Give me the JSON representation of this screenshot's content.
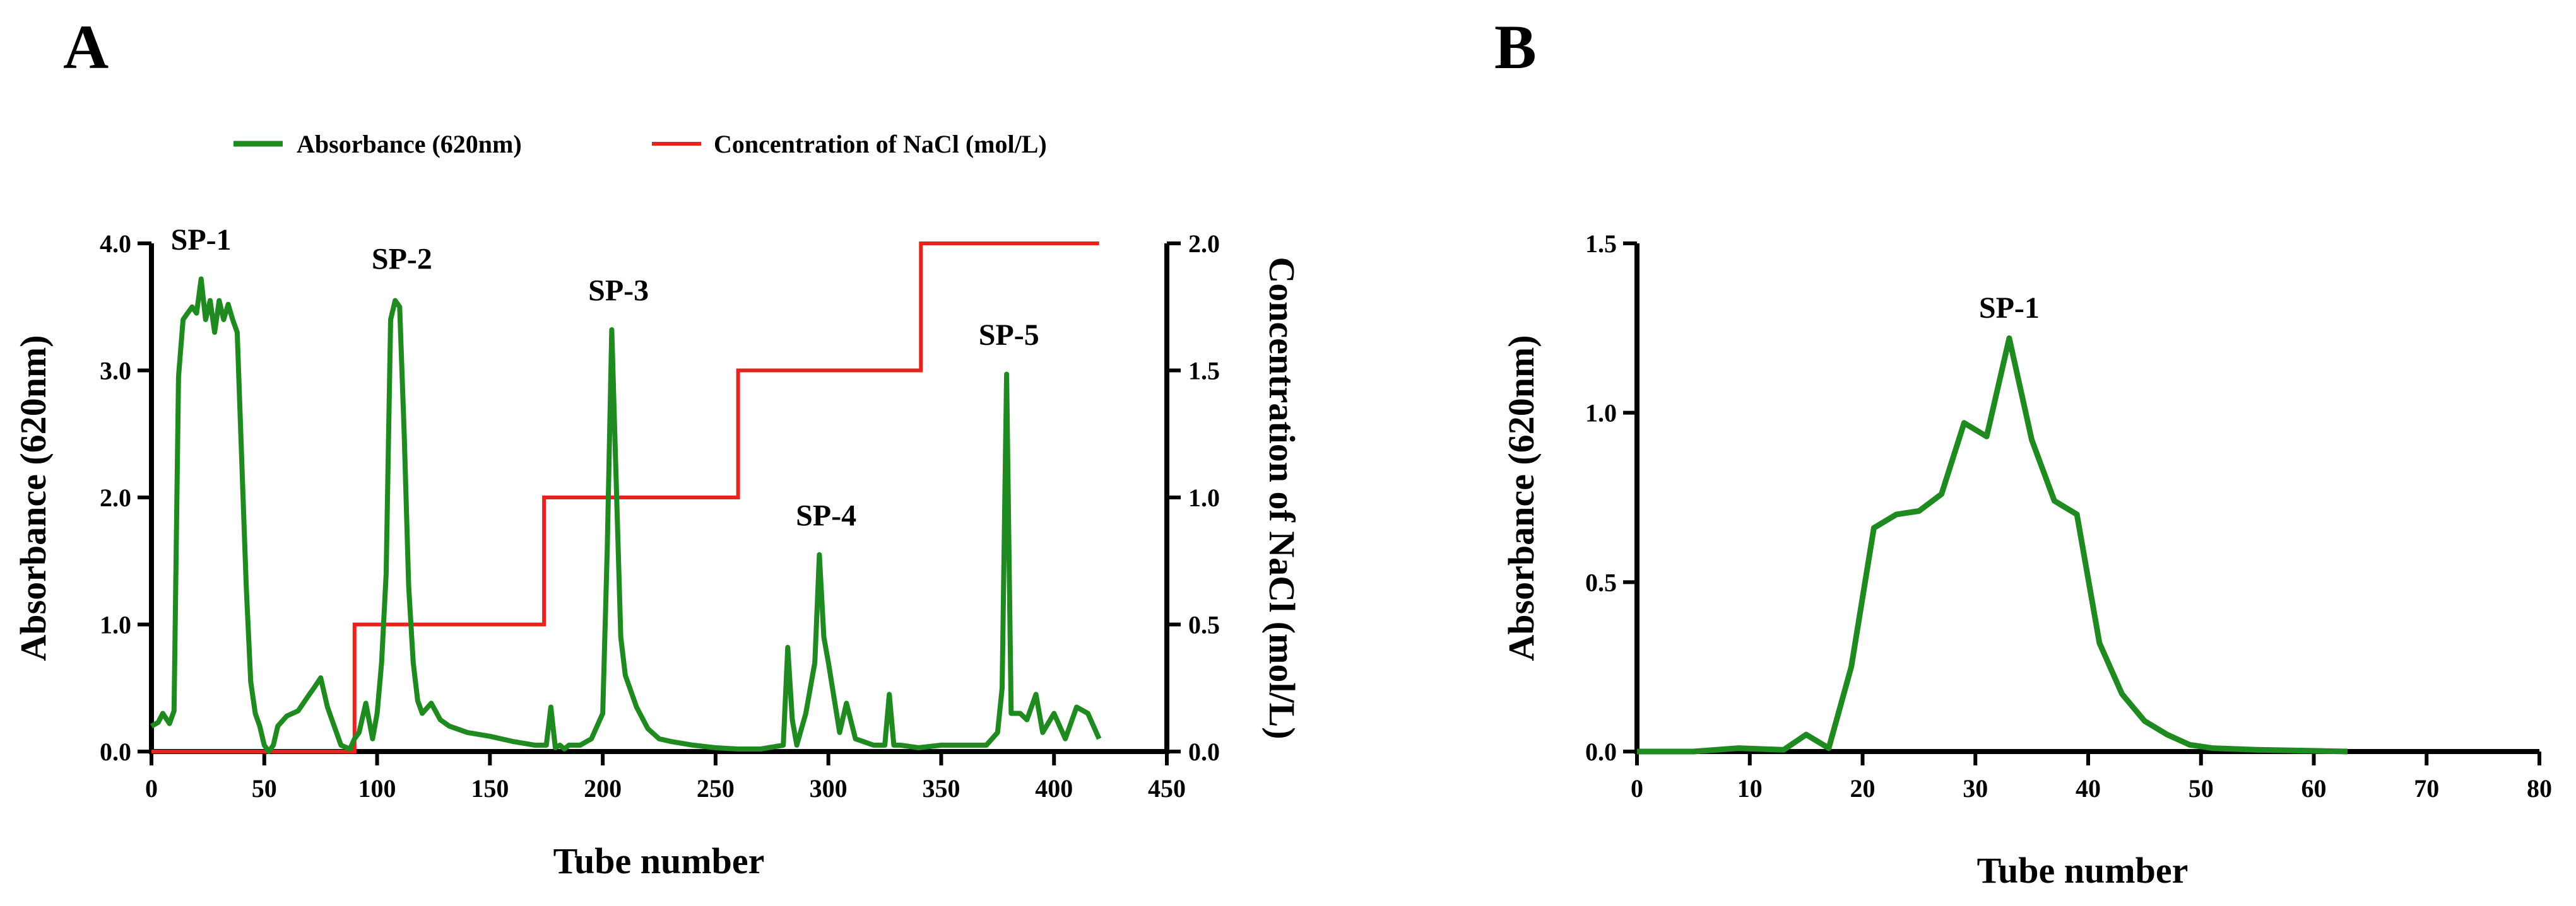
{
  "panels": {
    "a": {
      "label": "A"
    },
    "b": {
      "label": "B"
    }
  },
  "colors": {
    "absorbance": "#1f8a1f",
    "nacl": "#e8231d",
    "axis": "#000000"
  },
  "chart_data": [
    {
      "id": "A",
      "type": "line",
      "legend": {
        "position": "top",
        "entries": [
          "Absorbance (620nm)",
          "Concentration of NaCl (mol/L)"
        ]
      },
      "xlabel": "Tube number",
      "ylabel": "Absorbance (620nm)",
      "y2label": "Concentration of NaCl (mol/L)",
      "xlim": [
        0,
        450
      ],
      "ylim": [
        0,
        4.0
      ],
      "y2lim": [
        0,
        2.0
      ],
      "xticks": [
        "0",
        "50",
        "100",
        "150",
        "200",
        "250",
        "300",
        "350",
        "400",
        "450"
      ],
      "yticks": [
        "0.0",
        "1.0",
        "2.0",
        "3.0",
        "4.0"
      ],
      "y2ticks": [
        "0.0",
        "0.5",
        "1.0",
        "1.5",
        "2.0"
      ],
      "series": [
        {
          "name": "Absorbance (620nm)",
          "axis": "left",
          "x": [
            0,
            3,
            5,
            8,
            10,
            12,
            14,
            16,
            18,
            20,
            22,
            24,
            26,
            28,
            30,
            32,
            34,
            36,
            38,
            40,
            42,
            44,
            46,
            48,
            50,
            52,
            54,
            56,
            60,
            65,
            70,
            72,
            75,
            78,
            80,
            84,
            88,
            90,
            92,
            95,
            98,
            100,
            102,
            104,
            106,
            108,
            110,
            112,
            114,
            116,
            118,
            120,
            124,
            128,
            132,
            140,
            150,
            160,
            170,
            175,
            177,
            179,
            181,
            183,
            185,
            190,
            195,
            200,
            202,
            204,
            206,
            208,
            210,
            215,
            220,
            225,
            230,
            240,
            250,
            260,
            270,
            280,
            282,
            284,
            286,
            290,
            294,
            296,
            298,
            300,
            305,
            308,
            312,
            320,
            325,
            327,
            329,
            332,
            340,
            350,
            360,
            370,
            375,
            377,
            379,
            381,
            385,
            388,
            392,
            395,
            400,
            405,
            410,
            415,
            420
          ],
          "values": [
            0.2,
            0.23,
            0.3,
            0.22,
            0.32,
            2.95,
            3.4,
            3.45,
            3.5,
            3.45,
            3.72,
            3.4,
            3.55,
            3.3,
            3.55,
            3.4,
            3.52,
            3.4,
            3.3,
            2.3,
            1.3,
            0.55,
            0.3,
            0.2,
            0.05,
            0.0,
            0.05,
            0.2,
            0.28,
            0.32,
            0.45,
            0.5,
            0.58,
            0.35,
            0.25,
            0.05,
            0.02,
            0.1,
            0.15,
            0.38,
            0.1,
            0.3,
            0.7,
            1.4,
            3.4,
            3.55,
            3.5,
            2.5,
            1.3,
            0.7,
            0.4,
            0.3,
            0.38,
            0.25,
            0.2,
            0.15,
            0.12,
            0.08,
            0.05,
            0.05,
            0.35,
            0.03,
            0.05,
            0.02,
            0.05,
            0.05,
            0.1,
            0.3,
            1.6,
            3.32,
            2.1,
            0.9,
            0.6,
            0.35,
            0.18,
            0.1,
            0.08,
            0.05,
            0.03,
            0.02,
            0.02,
            0.05,
            0.82,
            0.25,
            0.05,
            0.3,
            0.7,
            1.55,
            0.9,
            0.7,
            0.15,
            0.38,
            0.1,
            0.05,
            0.05,
            0.45,
            0.05,
            0.05,
            0.03,
            0.05,
            0.05,
            0.05,
            0.15,
            0.5,
            2.97,
            0.3,
            0.3,
            0.25,
            0.45,
            0.15,
            0.3,
            0.1,
            0.35,
            0.3,
            0.1
          ],
          "color": "#1f8a1f"
        },
        {
          "name": "Concentration of NaCl (mol/L)",
          "axis": "right",
          "x": [
            0,
            90,
            90,
            174,
            174,
            260,
            260,
            341,
            341,
            420
          ],
          "values": [
            0,
            0,
            0.5,
            0.5,
            1.0,
            1.0,
            1.5,
            1.5,
            2.0,
            2.0
          ],
          "color": "#e8231d"
        }
      ],
      "annotations": [
        {
          "text": "SP-1",
          "x": 22,
          "y": 3.95
        },
        {
          "text": "SP-2",
          "x": 111,
          "y": 3.8
        },
        {
          "text": "SP-3",
          "x": 207,
          "y": 3.55
        },
        {
          "text": "SP-4",
          "x": 299,
          "y": 1.78
        },
        {
          "text": "SP-5",
          "x": 380,
          "y": 3.2
        }
      ]
    },
    {
      "id": "B",
      "type": "line",
      "xlabel": "Tube number",
      "ylabel": "Absorbance (620nm)",
      "xlim": [
        0,
        80
      ],
      "ylim": [
        0,
        1.5
      ],
      "xticks": [
        "0",
        "10",
        "20",
        "30",
        "40",
        "50",
        "60",
        "70",
        "80"
      ],
      "yticks": [
        "0.0",
        "0.5",
        "1.0",
        "1.5"
      ],
      "series": [
        {
          "name": "Absorbance (620nm)",
          "x": [
            0,
            5,
            9,
            13,
            15,
            17,
            19,
            21,
            23,
            25,
            27,
            29,
            31,
            33,
            35,
            37,
            39,
            41,
            43,
            45,
            47,
            49,
            51,
            55,
            60,
            63
          ],
          "values": [
            0,
            0,
            0.01,
            0.005,
            0.05,
            0.01,
            0.25,
            0.66,
            0.7,
            0.71,
            0.76,
            0.97,
            0.93,
            1.22,
            0.92,
            0.74,
            0.7,
            0.32,
            0.17,
            0.09,
            0.05,
            0.02,
            0.01,
            0.005,
            0.002,
            0.0
          ],
          "color": "#1f8a1f"
        }
      ],
      "annotations": [
        {
          "text": "SP-1",
          "x": 33,
          "y": 1.28
        }
      ]
    }
  ]
}
